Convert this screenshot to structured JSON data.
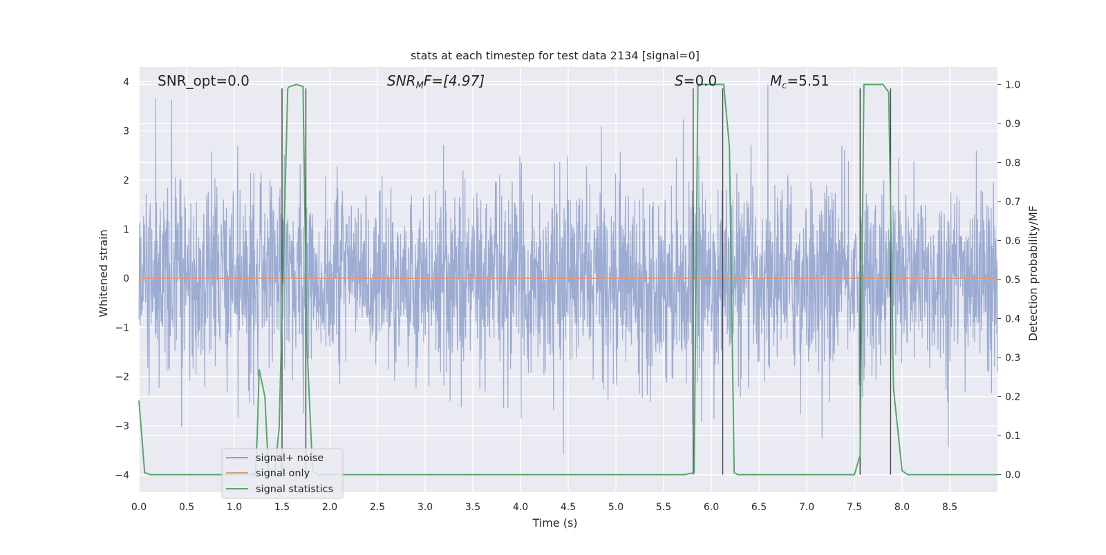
{
  "chart_data": {
    "type": "line",
    "title": "stats at each timestep for test data 2134 [signal=0]",
    "xlabel": "Time (s)",
    "ylabel_left": "Whitened strain",
    "ylabel_right": "Detection probability/MF",
    "xlim": [
      0.0,
      9.0
    ],
    "ylim_left": [
      -4.35,
      4.3
    ],
    "ylim_right": [
      -0.045,
      1.045
    ],
    "grid": true,
    "legend_placement": "lower-left",
    "x_ticks": [
      "0.0",
      "0.5",
      "1.0",
      "1.5",
      "2.0",
      "2.5",
      "3.0",
      "3.5",
      "4.0",
      "4.5",
      "5.0",
      "5.5",
      "6.0",
      "6.5",
      "7.0",
      "7.5",
      "8.0",
      "8.5"
    ],
    "y_left_ticks": [
      "4",
      "3",
      "2",
      "1",
      "0",
      "−1",
      "−2",
      "−3",
      "−4"
    ],
    "y_right_ticks": [
      "1.0",
      "0.9",
      "0.8",
      "0.7",
      "0.6",
      "0.5",
      "0.4",
      "0.3",
      "0.2",
      "0.1",
      "0.0"
    ],
    "annotations": {
      "snr_opt": "SNR_opt=0.0",
      "snr_mf_base": "SNR",
      "snr_mf_sub": "M",
      "snr_mf_tail": "F=[4.97]",
      "s_base": "S",
      "s_tail": "=0.0",
      "mc_base": "M",
      "mc_sub": "c",
      "mc_tail": "=5.51"
    },
    "series": [
      {
        "name": "signal+ noise",
        "color": "#8da0cb",
        "axis": "left",
        "description_only_visual": "dense noise roughly within ±2.5, peaks near ±4"
      },
      {
        "name": "signal only",
        "color": "#e1967a",
        "axis": "left",
        "x": [
          0.0,
          9.0
        ],
        "y": [
          0.0,
          0.0
        ]
      },
      {
        "name": "signal statistics",
        "color": "#55a868",
        "axis": "right",
        "x": [
          0.0,
          0.06,
          0.12,
          1.22,
          1.24,
          1.26,
          1.32,
          1.36,
          1.42,
          1.47,
          1.53,
          1.56,
          1.58,
          1.65,
          1.72,
          1.76,
          1.82,
          1.88,
          1.95,
          5.72,
          5.82,
          5.86,
          6.13,
          6.19,
          6.24,
          6.28,
          7.5,
          7.56,
          7.6,
          7.8,
          7.86,
          7.91,
          8.0,
          8.06,
          9.0
        ],
        "y": [
          0.19,
          0.005,
          0.0,
          0.0,
          0.1,
          0.27,
          0.2,
          0.0,
          0.0,
          0.12,
          0.7,
          0.99,
          0.995,
          1.0,
          0.995,
          0.34,
          0.01,
          0.0,
          0.0,
          0.0,
          0.005,
          1.0,
          1.0,
          0.84,
          0.005,
          0.0,
          0.0,
          0.05,
          1.0,
          1.0,
          0.98,
          0.22,
          0.01,
          0.0,
          0.0
        ]
      }
    ],
    "vertical_markers": [
      1.5,
      1.75,
      5.81,
      6.12,
      7.56,
      7.88
    ],
    "legend": [
      "signal+ noise",
      "signal only",
      "signal statistics"
    ]
  }
}
